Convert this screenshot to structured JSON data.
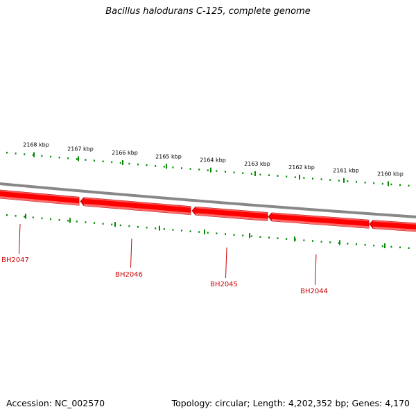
{
  "title": "Bacillus halodurans C-125, complete genome",
  "accession": {
    "label": "Accession:",
    "value": "NC_002570",
    "text": "Accession: NC_002570"
  },
  "summary": {
    "text": "Topology: circular; Length: 4,202,352 bp; Genes: 4,170",
    "topology": "circular",
    "length": "4,202,352 bp",
    "genes": "4,170"
  },
  "colors": {
    "gene_fill": "#ff0000",
    "gene_highlight": "#ff7777",
    "gene_shadow": "#aa0000",
    "backbone": "#888888",
    "tick": "#008800",
    "gene_label": "#cc0000",
    "text": "#000000"
  },
  "scale": {
    "unit": "kbp",
    "labels": [
      "2168 kbp",
      "2167 kbp",
      "2166 kbp",
      "2165 kbp",
      "2164 kbp",
      "2163 kbp",
      "2162 kbp",
      "2161 kbp",
      "2160 kbp"
    ]
  },
  "genes": [
    {
      "name": "BH2047"
    },
    {
      "name": "BH2046"
    },
    {
      "name": "BH2045"
    },
    {
      "name": "BH2044"
    }
  ]
}
